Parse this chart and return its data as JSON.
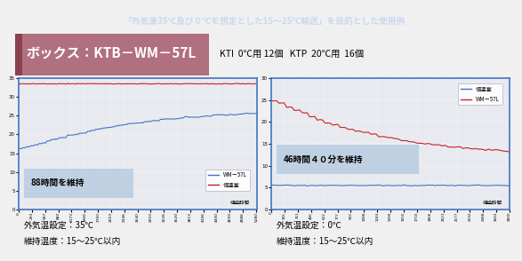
{
  "title": "「外気溓35℃及び０℃を想定とした15～25℃輸送」を目的とした使用例",
  "box_label": "ボックス：KTB－WM－57L",
  "kti_label": "KTI  0℃用 12個   KTP  20℃用  16個",
  "left_annotation": "88時間を維持",
  "right_annotation": "46時間４０分を維持",
  "left_xlabel": "経過時間",
  "right_xlabel": "経過時間",
  "left_legend_wm": "WM－57L",
  "left_legend_room": "恒温室",
  "right_legend_room": "恒温室",
  "right_legend_wm": "WM－57L",
  "left_bottom_line1": "外気温設定：35℃",
  "left_bottom_line2": "維持温度：15～25℃以内",
  "right_bottom_line1": "外気温設定：0℃",
  "right_bottom_line2": "維持温度：15～25℃以内",
  "title_bg": "#2a3f6e",
  "title_fg": "#c8d8f0",
  "box_label_bg": "#b07080",
  "box_label_fg": "#ffffff",
  "header_bg": "#e8e0e8",
  "header_left_accent": "#8b4050",
  "plot_bg": "#e8eaf0",
  "plot_border": "#4472c4",
  "left_wm57l_color": "#4472c4",
  "left_room_color": "#cc2020",
  "right_room_color": "#4472c4",
  "right_wm57l_color": "#cc2020",
  "left_ylim": [
    0,
    35
  ],
  "right_ylim": [
    0,
    30
  ],
  "left_yticks": [
    0,
    5,
    10,
    15,
    20,
    25,
    30,
    35
  ],
  "right_yticks": [
    0,
    5,
    10,
    15,
    20,
    25,
    30
  ],
  "anno_bg": "#b8cce0",
  "legend_bg": "#f0f0f8"
}
